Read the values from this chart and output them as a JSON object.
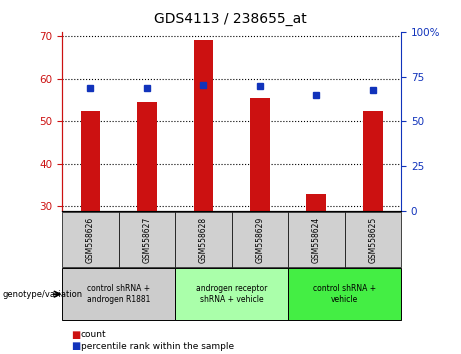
{
  "title": "GDS4113 / 238655_at",
  "samples": [
    "GSM558626",
    "GSM558627",
    "GSM558628",
    "GSM558629",
    "GSM558624",
    "GSM558625"
  ],
  "counts": [
    52.5,
    54.5,
    69.0,
    55.5,
    33.0,
    52.5
  ],
  "percentile_ranks": [
    68.5,
    68.5,
    70.5,
    69.5,
    64.5,
    67.5
  ],
  "ylim_left": [
    29,
    71
  ],
  "ylim_right": [
    0,
    100
  ],
  "yticks_left": [
    30,
    40,
    50,
    60,
    70
  ],
  "yticks_right": [
    0,
    25,
    50,
    75,
    100
  ],
  "ytick_labels_right": [
    "0",
    "25",
    "50",
    "75",
    "100%"
  ],
  "bar_color": "#cc1111",
  "dot_color": "#1133bb",
  "bar_bottom": 29,
  "groups": [
    {
      "label": "control shRNA +\nandrogen R1881",
      "samples": [
        0,
        1
      ],
      "color": "#cccccc"
    },
    {
      "label": "androgen receptor\nshRNA + vehicle",
      "samples": [
        2,
        3
      ],
      "color": "#aaffaa"
    },
    {
      "label": "control shRNA +\nvehicle",
      "samples": [
        4,
        5
      ],
      "color": "#44ee44"
    }
  ],
  "legend_count_label": "count",
  "legend_percentile_label": "percentile rank within the sample",
  "genotype_label": "genotype/variation",
  "tick_color_left": "#cc1111",
  "tick_color_right": "#1133bb"
}
